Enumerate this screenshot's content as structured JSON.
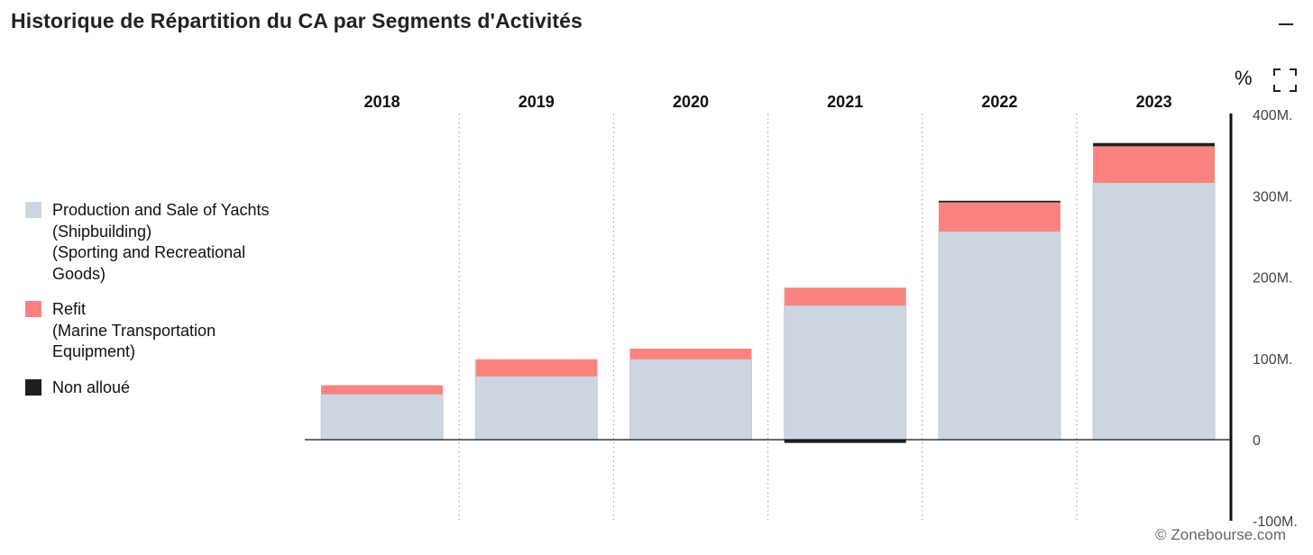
{
  "header": {
    "title": "Historique de Répartition du CA par Segments d'Activités",
    "percent_label": "%"
  },
  "legend": {
    "items": [
      {
        "lines": [
          "Production and Sale of Yachts",
          "(Shipbuilding)",
          "(Sporting and Recreational",
          "Goods)"
        ],
        "color": "#cdd6e0"
      },
      {
        "lines": [
          "Refit",
          "(Marine Transportation",
          "Equipment)"
        ],
        "color": "#fa8380"
      },
      {
        "lines": [
          "Non alloué"
        ],
        "color": "#1e1e1e"
      }
    ]
  },
  "chart_data": {
    "type": "bar",
    "stacked": true,
    "categories": [
      "2018",
      "2019",
      "2020",
      "2021",
      "2022",
      "2023"
    ],
    "series": [
      {
        "name": "Production and Sale of Yachts (Shipbuilding) (Sporting and Recreational Goods)",
        "color": "#cdd6e0",
        "values": [
          56,
          78,
          99,
          165,
          256,
          316
        ]
      },
      {
        "name": "Refit (Marine Transportation Equipment)",
        "color": "#fa8380",
        "values": [
          11,
          21,
          13,
          22,
          36,
          45
        ]
      },
      {
        "name": "Non alloué",
        "color": "#1e1e1e",
        "values": [
          0,
          0,
          0,
          -4,
          2,
          4
        ]
      }
    ],
    "y_ticks": [
      "400M.",
      "300M.",
      "200M.",
      "100M.",
      "0",
      "-100M."
    ],
    "y_tick_values": [
      400,
      300,
      200,
      100,
      0,
      -100
    ],
    "ylim": [
      -100,
      400
    ],
    "y_axis_position": "right",
    "legend_position": "left",
    "xlabel": "",
    "ylabel": ""
  },
  "footer": {
    "copyright": "© Zonebourse.com"
  }
}
